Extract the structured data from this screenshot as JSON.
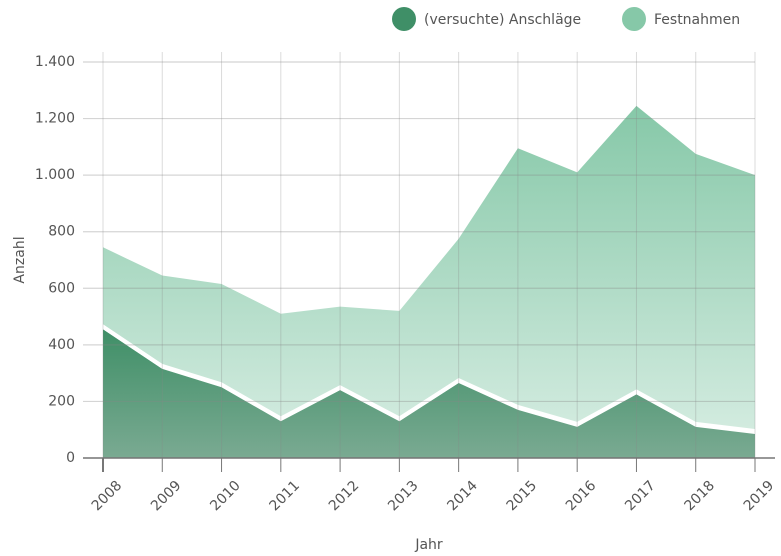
{
  "chart_data": {
    "type": "stacked_area",
    "x_label": "Jahr",
    "y_label": "Anzahl",
    "categories": [
      "2008",
      "2009",
      "2010",
      "2011",
      "2012",
      "2013",
      "2014",
      "2015",
      "2016",
      "2017",
      "2018",
      "2019"
    ],
    "series": [
      {
        "name": "(versuchte) Anschläge",
        "color": "#3f8f67",
        "values": [
          455,
          315,
          250,
          130,
          240,
          130,
          265,
          170,
          110,
          225,
          110,
          85
        ]
      },
      {
        "name": "Festnahmen",
        "color": "#86c8a8",
        "values": [
          290,
          330,
          365,
          380,
          295,
          390,
          510,
          925,
          900,
          1020,
          965,
          915
        ]
      }
    ],
    "ylim": [
      0,
      1400
    ],
    "yticks": [
      0,
      200,
      400,
      600,
      800,
      {
        "value": 1000,
        "label": "1.000"
      },
      {
        "value": 1200,
        "label": "1.200"
      },
      {
        "value": 1400,
        "label": "1.400"
      }
    ],
    "grid": true,
    "legend": "top-right"
  }
}
